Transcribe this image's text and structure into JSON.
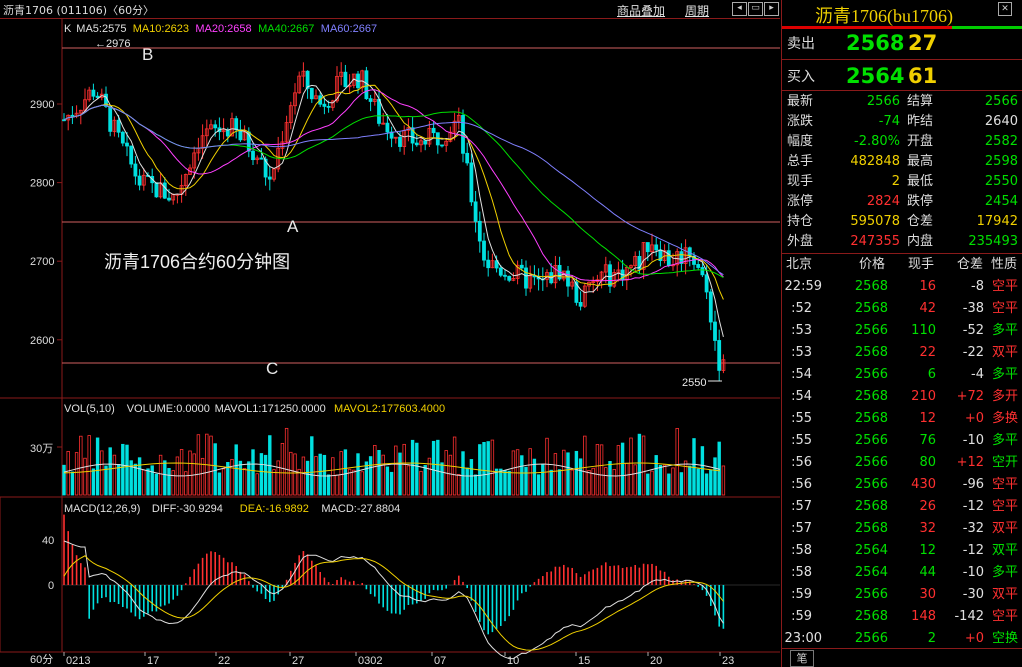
{
  "window": {
    "title": "沥青1706 (011106)〈60分〉"
  },
  "toolbar": {
    "overlay_label": "商品叠加",
    "period_label": "周期"
  },
  "chart": {
    "price_axis": [
      "2900",
      "2800",
      "2700",
      "2600"
    ],
    "ma_legend": [
      {
        "text": "K",
        "color": "#e0e0e0"
      },
      {
        "text": "MA5:2575",
        "color": "#e0e0e0"
      },
      {
        "text": "MA10:2623",
        "color": "#f0d000"
      },
      {
        "text": "MA20:2658",
        "color": "#ff40ff"
      },
      {
        "text": "MA40:2667",
        "color": "#00e000"
      },
      {
        "text": "MA60:2667",
        "color": "#8080ff"
      }
    ],
    "high_marker": "2976",
    "low_marker": "2550",
    "annotations": {
      "a": "A",
      "b": "B",
      "c": "C"
    },
    "caption": "沥青1706合约60分钟图",
    "vol_legend": [
      {
        "text": "VOL(5,10)",
        "color": "#e0e0e0"
      },
      {
        "text": "VOLUME:0.0000",
        "color": "#e0e0e0"
      },
      {
        "text": "MAVOL1:171250.0000",
        "color": "#e0e0e0"
      },
      {
        "text": "MAVOL2:177603.4000",
        "color": "#f0d000"
      }
    ],
    "vol_axis": "30万",
    "macd_legend": [
      {
        "text": "MACD(12,26,9)",
        "color": "#e0e0e0"
      },
      {
        "text": "DIFF:-30.9294",
        "color": "#e0e0e0"
      },
      {
        "text": "DEA:-16.9892",
        "color": "#f0d000"
      },
      {
        "text": "MACD:-27.8804",
        "color": "#e0e0e0"
      }
    ],
    "macd_axis": [
      "40",
      "0"
    ],
    "period_corner": "60分",
    "date_axis": [
      "0213",
      "17",
      "22",
      "27",
      "0302",
      "07",
      "10",
      "15",
      "20",
      "23"
    ],
    "colors": {
      "up": "#ff3030",
      "down": "#00e0e0",
      "grid": "#8a1a1a"
    }
  },
  "quote": {
    "title": "沥青1706(bu1706)",
    "sell_label": "卖出",
    "sell_price": "2568",
    "sell_vol": "27",
    "buy_label": "买入",
    "buy_price": "2564",
    "buy_vol": "61",
    "stats": [
      {
        "l1": "最新",
        "v1": "2566",
        "c1": "g",
        "l2": "结算",
        "v2": "2566",
        "c2": "g"
      },
      {
        "l1": "涨跌",
        "v1": "-74",
        "c1": "g",
        "l2": "昨结",
        "v2": "2640",
        "c2": "w"
      },
      {
        "l1": "幅度",
        "v1": "-2.80%",
        "c1": "g",
        "l2": "开盘",
        "v2": "2582",
        "c2": "g"
      },
      {
        "l1": "总手",
        "v1": "482848",
        "c1": "y",
        "l2": "最高",
        "v2": "2598",
        "c2": "g"
      },
      {
        "l1": "现手",
        "v1": "2",
        "c1": "y",
        "l2": "最低",
        "v2": "2550",
        "c2": "g"
      },
      {
        "l1": "涨停",
        "v1": "2824",
        "c1": "r",
        "l2": "跌停",
        "v2": "2454",
        "c2": "g"
      },
      {
        "l1": "持仓",
        "v1": "595078",
        "c1": "y",
        "l2": "仓差",
        "v2": "17942",
        "c2": "y"
      },
      {
        "l1": "外盘",
        "v1": "247355",
        "c1": "r",
        "l2": "内盘",
        "v2": "235493",
        "c2": "g"
      }
    ],
    "ticks_header": [
      "北京",
      "价格",
      "现手",
      "仓差",
      "性质"
    ],
    "ticks": [
      {
        "t": "22:59",
        "p": "2568",
        "q": "16",
        "qc": "r",
        "d": "-8",
        "n": "空平",
        "nc": "r"
      },
      {
        "t": ":52",
        "p": "2568",
        "q": "42",
        "qc": "r",
        "d": "-38",
        "n": "空平",
        "nc": "r"
      },
      {
        "t": ":53",
        "p": "2566",
        "q": "110",
        "qc": "g",
        "d": "-52",
        "n": "多平",
        "nc": "g"
      },
      {
        "t": ":53",
        "p": "2568",
        "q": "22",
        "qc": "r",
        "d": "-22",
        "n": "双平",
        "nc": "r"
      },
      {
        "t": ":54",
        "p": "2566",
        "q": "6",
        "qc": "g",
        "d": "-4",
        "n": "多平",
        "nc": "g"
      },
      {
        "t": ":54",
        "p": "2568",
        "q": "210",
        "qc": "r",
        "d": "+72",
        "n": "多开",
        "nc": "r"
      },
      {
        "t": ":55",
        "p": "2568",
        "q": "12",
        "qc": "r",
        "d": "+0",
        "n": "多换",
        "nc": "r"
      },
      {
        "t": ":55",
        "p": "2566",
        "q": "76",
        "qc": "g",
        "d": "-10",
        "n": "多平",
        "nc": "g"
      },
      {
        "t": ":56",
        "p": "2566",
        "q": "80",
        "qc": "g",
        "d": "+12",
        "n": "空开",
        "nc": "g"
      },
      {
        "t": ":56",
        "p": "2566",
        "q": "430",
        "qc": "r",
        "d": "-96",
        "n": "空平",
        "nc": "r"
      },
      {
        "t": ":57",
        "p": "2568",
        "q": "26",
        "qc": "r",
        "d": "-12",
        "n": "空平",
        "nc": "r"
      },
      {
        "t": ":57",
        "p": "2568",
        "q": "32",
        "qc": "r",
        "d": "-32",
        "n": "双平",
        "nc": "r"
      },
      {
        "t": ":58",
        "p": "2564",
        "q": "12",
        "qc": "g",
        "d": "-12",
        "n": "双平",
        "nc": "g"
      },
      {
        "t": ":58",
        "p": "2564",
        "q": "44",
        "qc": "g",
        "d": "-10",
        "n": "多平",
        "nc": "g"
      },
      {
        "t": ":59",
        "p": "2566",
        "q": "30",
        "qc": "r",
        "d": "-30",
        "n": "双平",
        "nc": "r"
      },
      {
        "t": ":59",
        "p": "2568",
        "q": "148",
        "qc": "r",
        "d": "-142",
        "n": "空平",
        "nc": "r"
      },
      {
        "t": "23:00",
        "p": "2566",
        "q": "2",
        "qc": "g",
        "d": "+0",
        "n": "空换",
        "nc": "g"
      }
    ],
    "bottom_button": "笔"
  }
}
